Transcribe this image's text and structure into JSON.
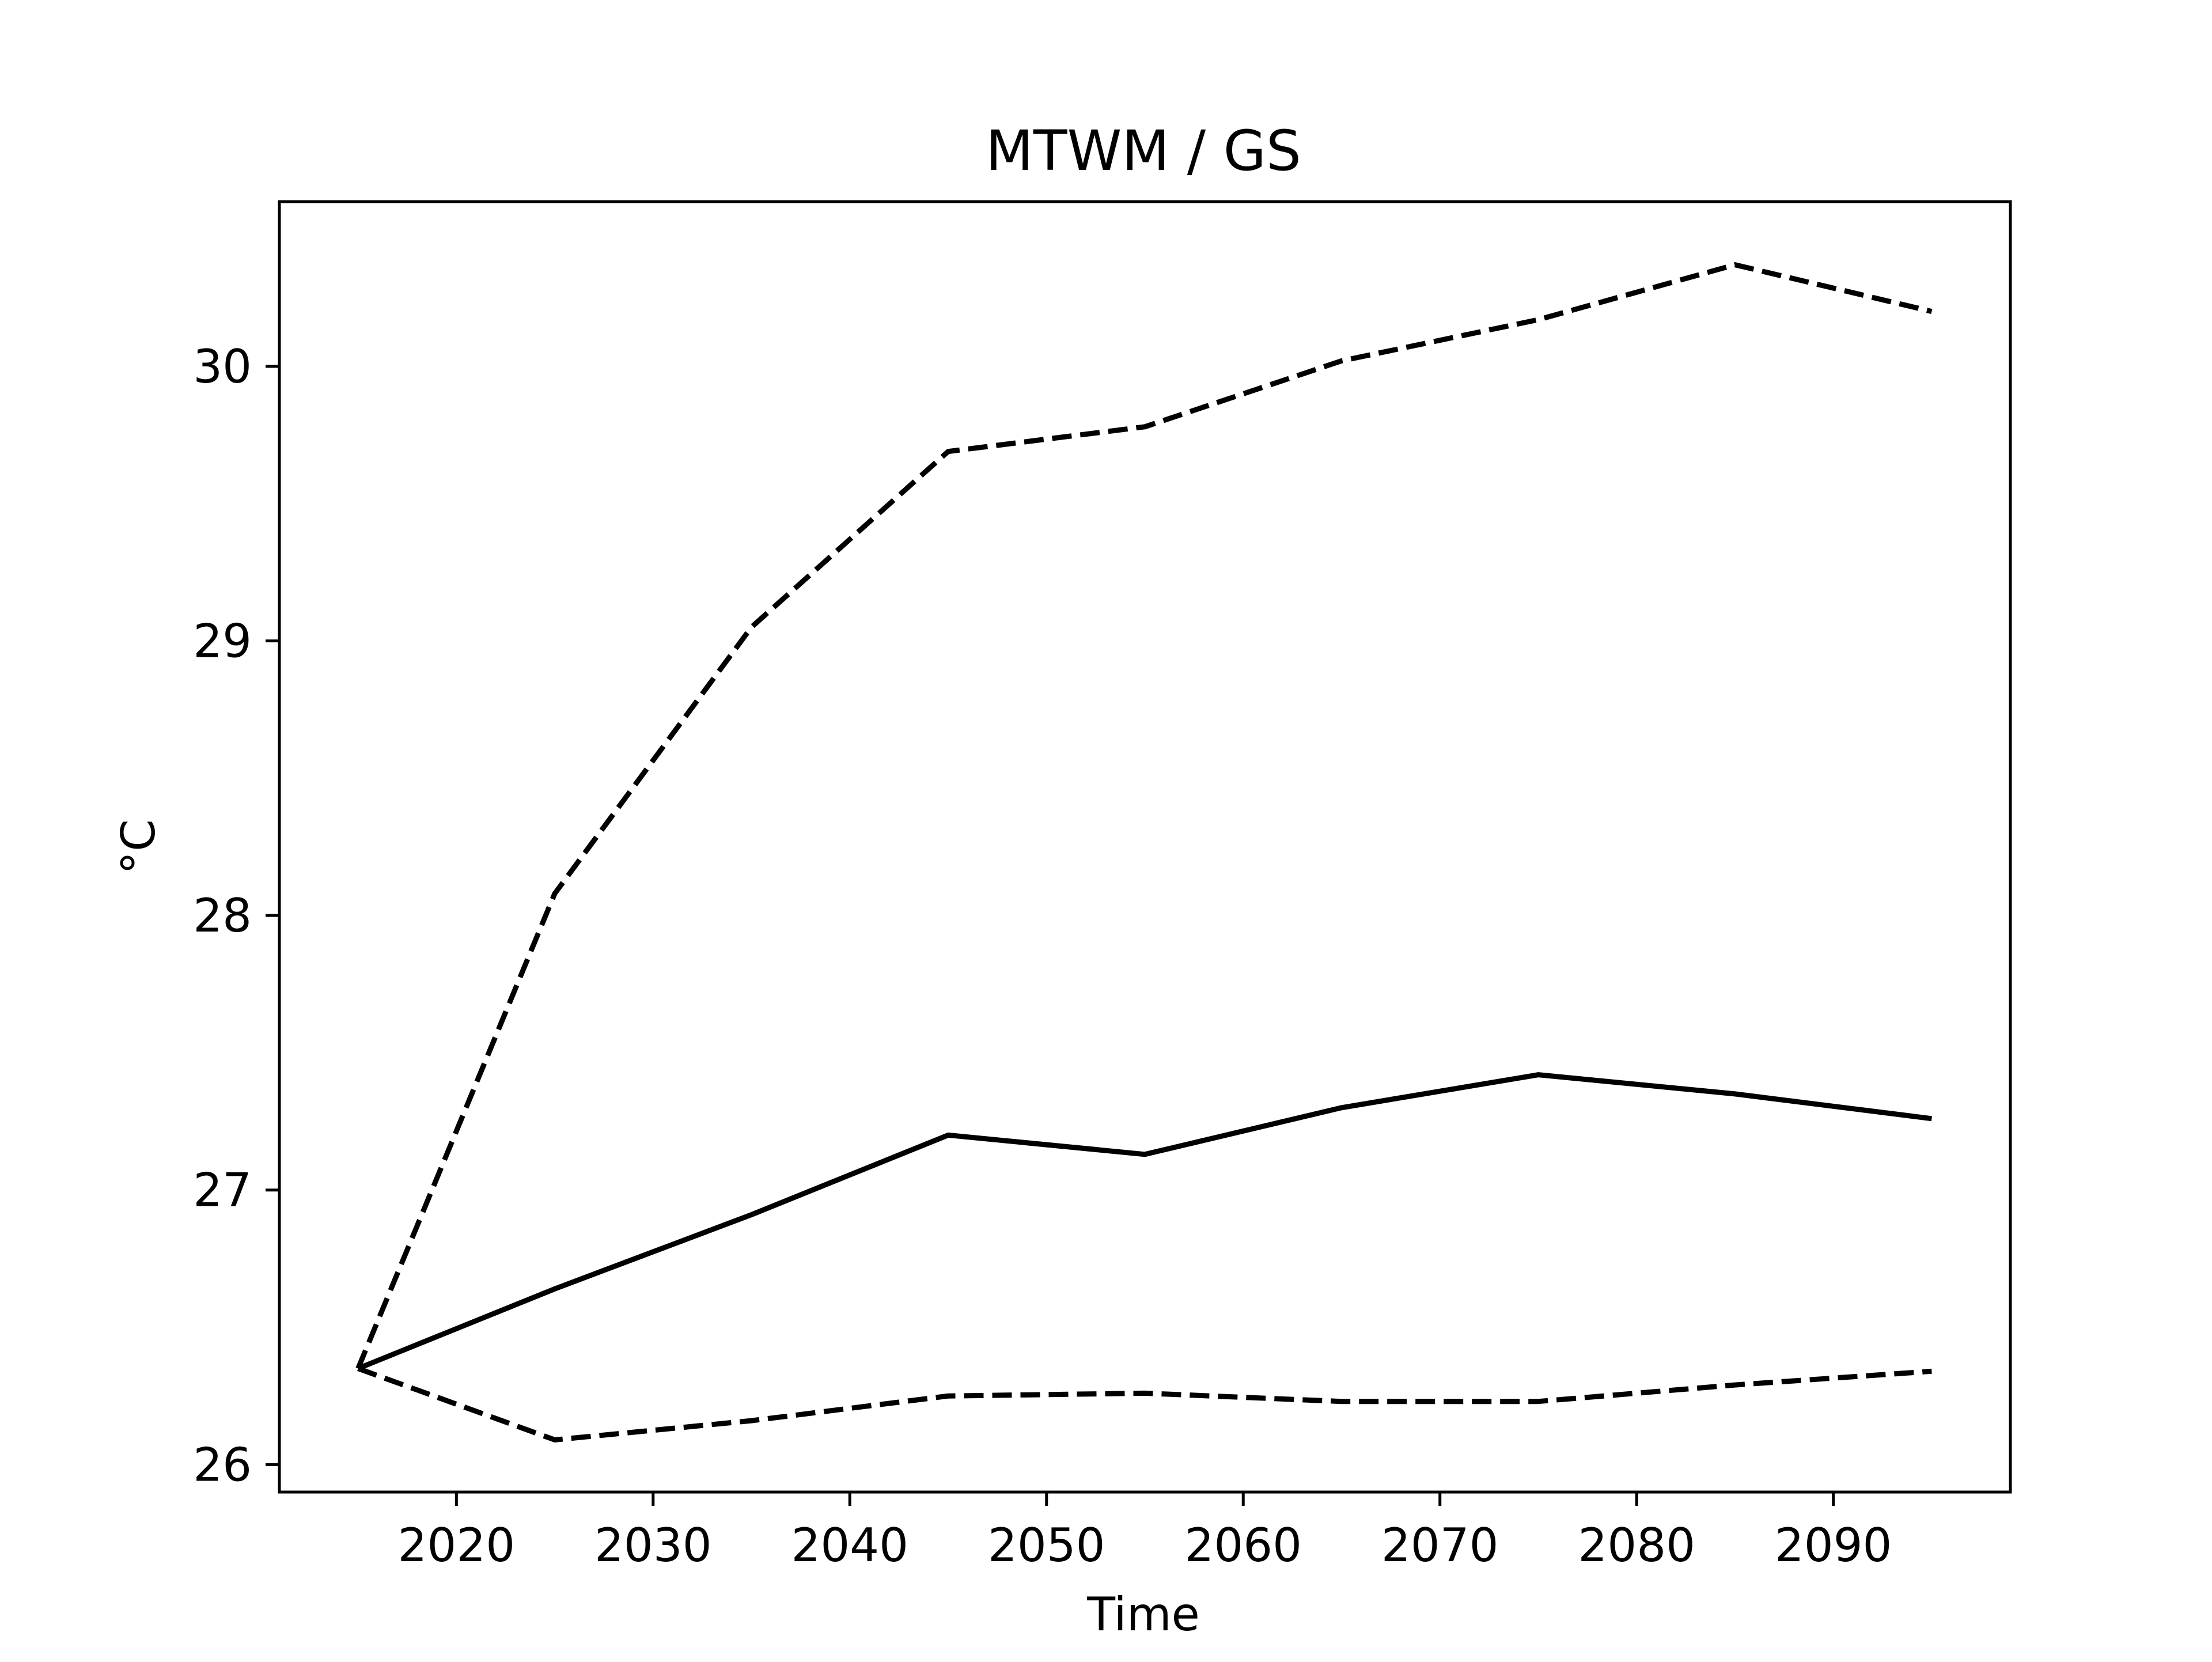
{
  "chart_data": {
    "type": "line",
    "title": "MTWM / GS",
    "xlabel": "Time",
    "ylabel": "°C",
    "xlim": [
      2011,
      2099
    ],
    "ylim": [
      25.9,
      30.6
    ],
    "xticks": [
      2020,
      2030,
      2040,
      2050,
      2060,
      2070,
      2080,
      2090
    ],
    "yticks": [
      26,
      27,
      28,
      29,
      30
    ],
    "grid": false,
    "x": [
      2015,
      2025,
      2035,
      2045,
      2055,
      2065,
      2075,
      2085,
      2095
    ],
    "series": [
      {
        "style": "dashed",
        "color": "#000000",
        "values": [
          26.35,
          28.08,
          29.05,
          29.69,
          29.78,
          30.02,
          30.17,
          30.37,
          30.2
        ]
      },
      {
        "style": "solid",
        "color": "#000000",
        "values": [
          26.35,
          26.64,
          26.91,
          27.2,
          27.13,
          27.3,
          27.42,
          27.35,
          27.26
        ]
      },
      {
        "style": "dashed",
        "color": "#000000",
        "values": [
          26.35,
          26.09,
          26.16,
          26.25,
          26.26,
          26.23,
          26.23,
          26.29,
          26.34
        ]
      }
    ]
  }
}
